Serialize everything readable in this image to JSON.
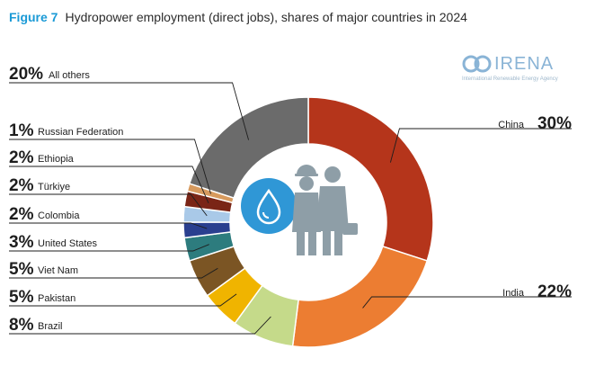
{
  "figure": {
    "number": "Figure 7",
    "title": "Hydropower employment (direct jobs), shares of major countries in 2024"
  },
  "logo": {
    "name": "IRENA",
    "tagline": "International Renewable Energy Agency"
  },
  "chart_data": {
    "type": "pie",
    "variant": "donut",
    "title": "Hydropower employment (direct jobs), shares of major countries in 2024",
    "slices": [
      {
        "label": "China",
        "value": 30,
        "display": "30%",
        "color": "#b5351b"
      },
      {
        "label": "India",
        "value": 22,
        "display": "22%",
        "color": "#ec7d32"
      },
      {
        "label": "Brazil",
        "value": 8,
        "display": "8%",
        "color": "#c5da8a"
      },
      {
        "label": "Pakistan",
        "value": 5,
        "display": "5%",
        "color": "#f0b400"
      },
      {
        "label": "Viet Nam",
        "value": 5,
        "display": "5%",
        "color": "#7b5524"
      },
      {
        "label": "United States",
        "value": 3,
        "display": "3%",
        "color": "#2d7c7e"
      },
      {
        "label": "Colombia",
        "value": 2,
        "display": "2%",
        "color": "#2a3f8f"
      },
      {
        "label": "Türkiye",
        "value": 2,
        "display": "2%",
        "color": "#a9c9e8"
      },
      {
        "label": "Ethiopia",
        "value": 2,
        "display": "2%",
        "color": "#7a2516"
      },
      {
        "label": "Russian Federation",
        "value": 1,
        "display": "1%",
        "color": "#d79a5e"
      },
      {
        "label": "All others",
        "value": 20,
        "display": "20%",
        "color": "#6b6b6b"
      }
    ],
    "legend_position": "leader-line labels around the ring",
    "center_icon": "hydropower-workers-icon"
  }
}
